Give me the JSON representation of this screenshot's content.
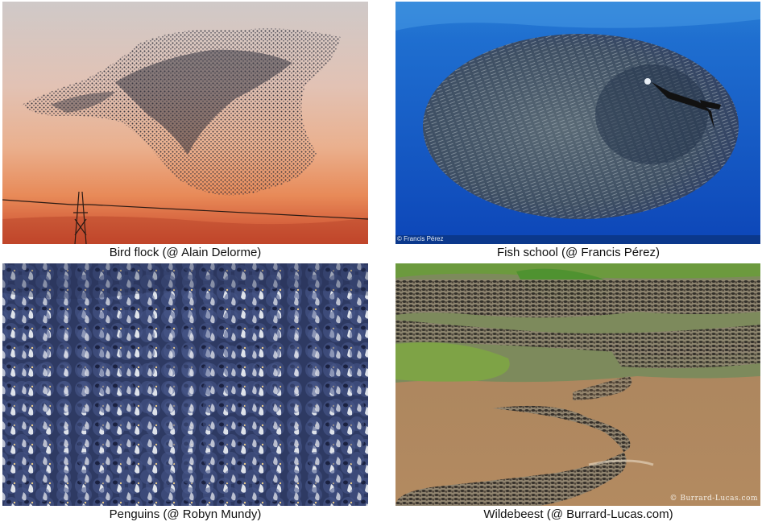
{
  "panels": [
    {
      "name": "bird-flock",
      "caption": "Bird flock (@ Alain Delorme)"
    },
    {
      "name": "fish-school",
      "caption": "Fish school (@ Francis Pérez)",
      "credit": "© Francis Pérez"
    },
    {
      "name": "penguins",
      "caption": "Penguins (@ Robyn Mundy)"
    },
    {
      "name": "wildebeest",
      "caption": "Wildebeest (@ Burrard-Lucas.com)",
      "credit": "© Burrard-Lucas.com"
    }
  ]
}
